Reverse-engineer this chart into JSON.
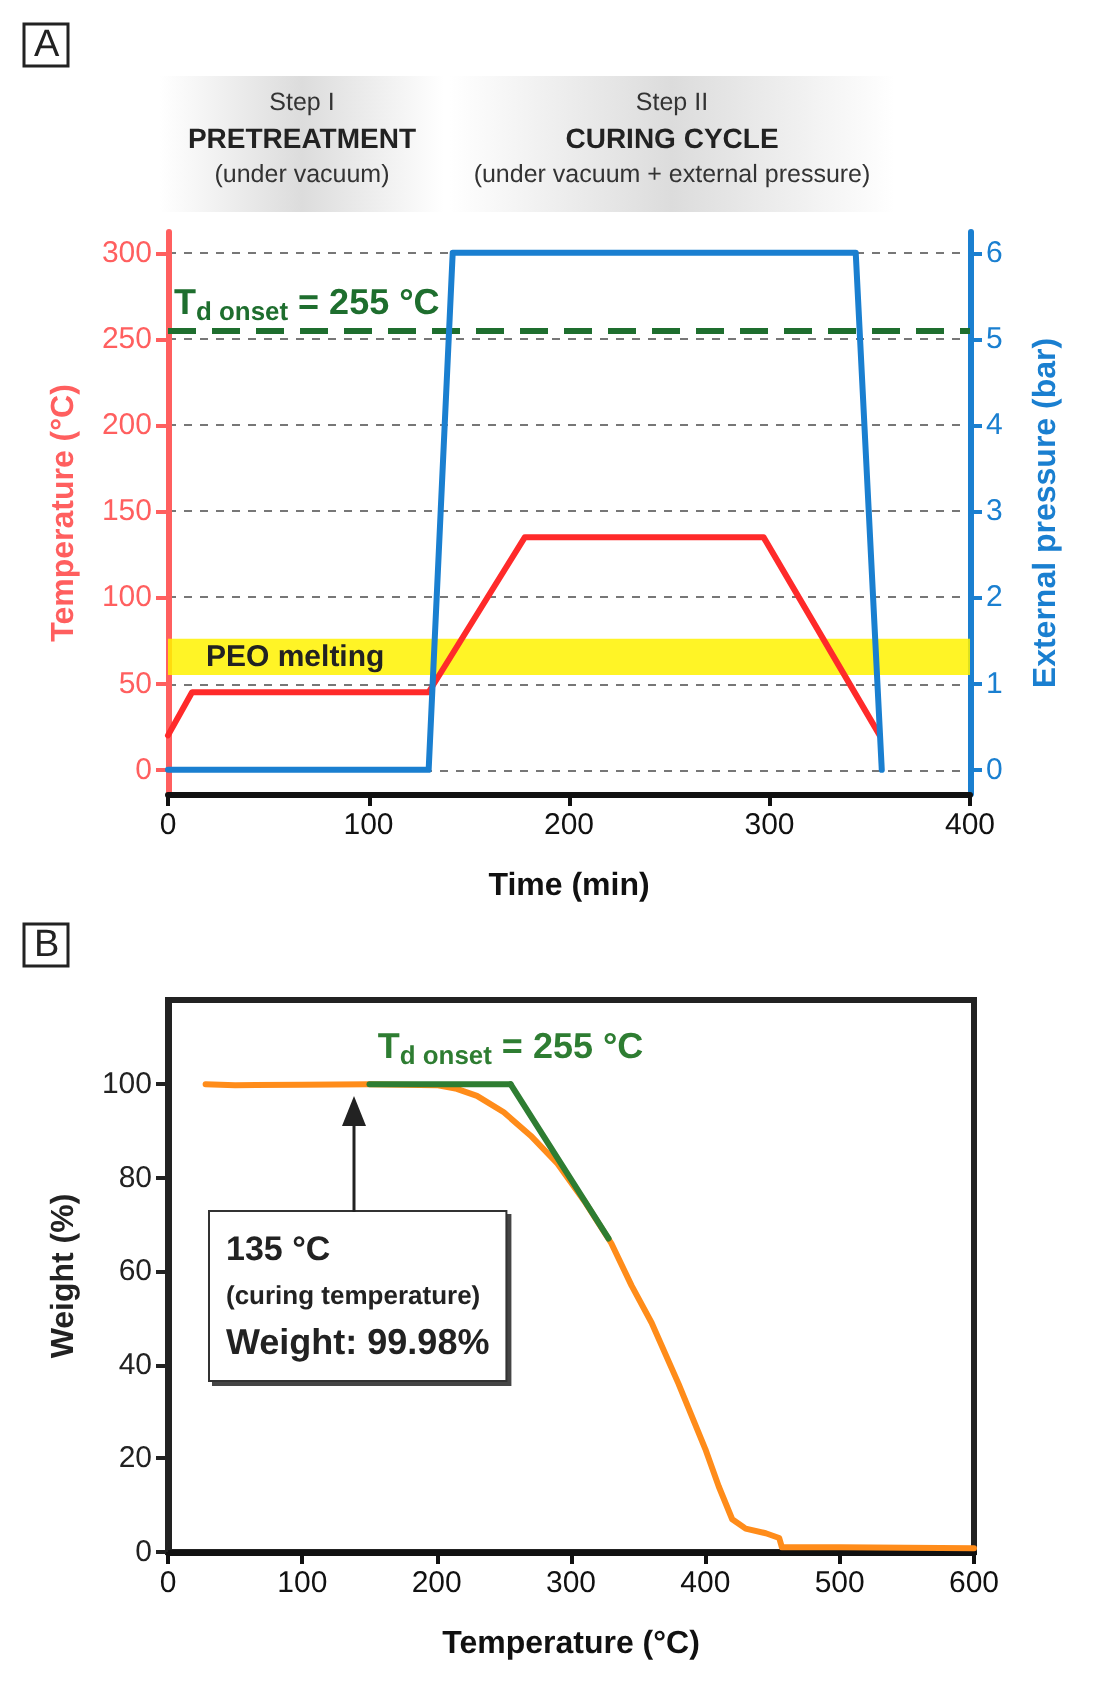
{
  "chart_data": [
    {
      "type": "line",
      "title": "A",
      "xlabel": "Time (min)",
      "ylabel": "Temperature (°C)",
      "y2label": "External pressure (bar)",
      "series": [
        {
          "color": "#ff2a2a",
          "x": [
            0,
            12,
            130,
            178,
            297,
            355
          ],
          "values": [
            20,
            45,
            45,
            135,
            135,
            20
          ]
        },
        {
          "color": "#1a7fd0",
          "axis": "y2",
          "x": [
            0,
            130,
            142,
            343,
            356
          ],
          "values": [
            0,
            0,
            6,
            6,
            0
          ]
        }
      ],
      "xlim": [
        0,
        400
      ],
      "xticks": [
        0,
        100,
        200,
        300,
        400
      ],
      "ylim": [
        -14,
        312
      ],
      "yticks": [
        0,
        50,
        100,
        150,
        200,
        250,
        300
      ],
      "y2lim": [
        -0.28,
        6.24
      ],
      "y2ticks": [
        0,
        1,
        2,
        3,
        4,
        5,
        6
      ],
      "grid": "y",
      "marker": "none",
      "line_style": "solid",
      "ref_lines": [
        {
          "axis": "y",
          "value": 255,
          "label": "T$_{d onset}$ = 255 °C",
          "color": "#1e6e2e",
          "line_style": "dashed"
        }
      ],
      "bands": [
        {
          "axis": "y",
          "from": 55,
          "to": 76,
          "label": "PEO melting",
          "color": "#fff200"
        }
      ],
      "annotations": [
        "Step I\nPRETREATMENT\n(under vacuum)",
        "Step II\nCURING CYCLE\n(under vacuum + external pressure)"
      ]
    },
    {
      "type": "line",
      "title": "B",
      "xlabel": "Temperature (°C)",
      "ylabel": "Weight (%)",
      "series": [
        {
          "color": "#ff8c1a",
          "x": [
            28,
            50,
            100,
            150,
            200,
            215,
            230,
            250,
            270,
            290,
            310,
            330,
            345,
            360,
            380,
            400,
            410,
            420,
            430,
            445,
            455,
            457,
            500,
            600
          ],
          "values": [
            100,
            99.8,
            99.9,
            100,
            99.8,
            99,
            97.5,
            94,
            89,
            83,
            75,
            66,
            57,
            49,
            36,
            22,
            14,
            7,
            5,
            4,
            3,
            1,
            1,
            0.8
          ]
        },
        {
          "color": "#2e7d32",
          "x": [
            150,
            255
          ],
          "values": [
            100,
            100
          ]
        },
        {
          "color": "#2e7d32",
          "x": [
            255,
            328
          ],
          "values": [
            100,
            67
          ]
        }
      ],
      "xlim": [
        0,
        600
      ],
      "xticks": [
        0,
        100,
        200,
        300,
        400,
        500,
        600
      ],
      "ylim": [
        0,
        118
      ],
      "yticks": [
        0,
        20,
        40,
        60,
        80,
        100
      ],
      "grid": false,
      "marker": "none",
      "line_style": "solid",
      "annotations": [
        {
          "text": "T$_{d onset}$ = 255 °C",
          "x": 255,
          "y": 100
        },
        "135 °C\n(curing temperature)\nWeight: 99.98%"
      ]
    }
  ]
}
